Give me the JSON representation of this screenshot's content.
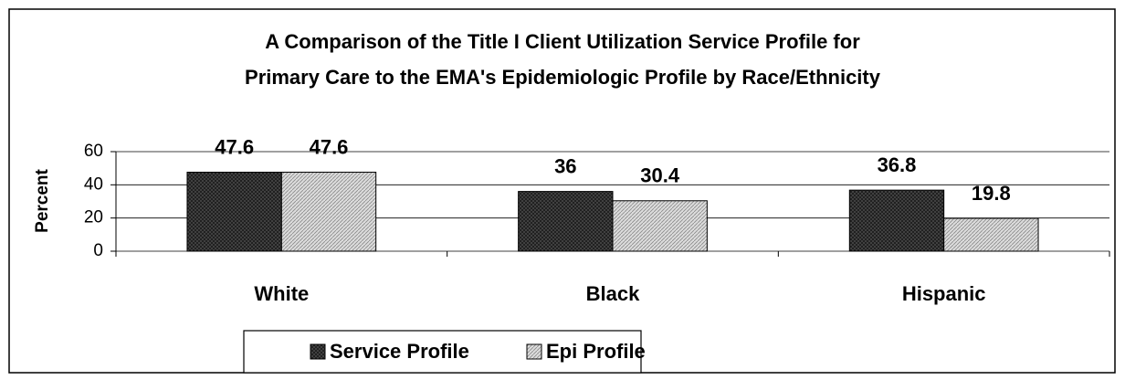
{
  "chart_data": {
    "type": "bar",
    "title": [
      "A Comparison of the Title I Client Utilization Service Profile for",
      "Primary Care to the EMA's Epidemiologic Profile by Race/Ethnicity"
    ],
    "ylabel": "Percent",
    "categories": [
      "White",
      "Black",
      "Hispanic"
    ],
    "series": [
      {
        "name": "Service Profile",
        "color": "#1c1c1c",
        "values": [
          47.6,
          36,
          36.8
        ]
      },
      {
        "name": "Epi Profile",
        "color": "#dcdcdc",
        "values": [
          47.6,
          30.4,
          19.8
        ]
      }
    ],
    "ylim": [
      0,
      60
    ],
    "yticks": [
      0,
      20,
      40,
      60
    ],
    "grid": true
  }
}
